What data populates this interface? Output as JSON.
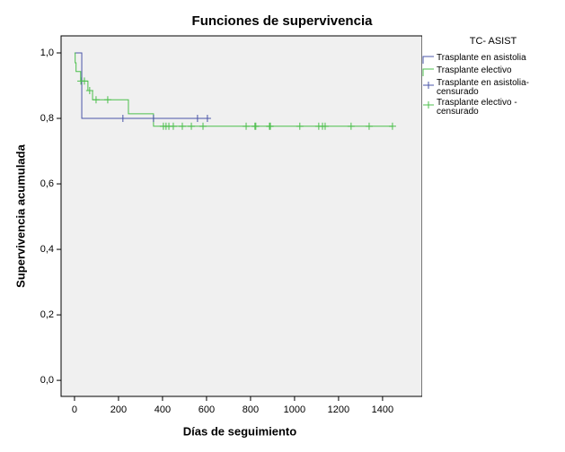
{
  "chart_data": {
    "type": "survival",
    "title": "Funciones de supervivencia",
    "x_label": "Días de seguimiento",
    "y_label": "Supervivencia acumulada",
    "legend_title": "TC- ASIST",
    "xlim": [
      -61,
      1580
    ],
    "ylim": [
      -0.049,
      1.052
    ],
    "xticks": [
      0,
      200,
      400,
      600,
      800,
      1000,
      1200,
      1400
    ],
    "yticks": [
      {
        "value": 0,
        "label": "0,0"
      },
      {
        "value": 0.2,
        "label": "0,2"
      },
      {
        "value": 0.4,
        "label": "0,4"
      },
      {
        "value": 0.6,
        "label": "0,6"
      },
      {
        "value": 0.8,
        "label": "0,8"
      },
      {
        "value": 1,
        "label": "1,0"
      }
    ],
    "series": [
      {
        "name": "Trasplante en asistolia",
        "color": "#4a55a8",
        "kind": "step",
        "x": [
          0,
          33,
          604
        ],
        "values": [
          1.0,
          0.8,
          0.8
        ]
      },
      {
        "name": "Trasplante electivo",
        "color": "#4cbf4c",
        "kind": "step",
        "x": [
          0,
          3,
          7,
          28,
          61,
          82,
          245,
          359,
          1445
        ],
        "values": [
          1.0,
          0.97,
          0.943,
          0.914,
          0.885,
          0.857,
          0.814,
          0.776,
          0.776
        ]
      },
      {
        "name": "Trasplante en asistolia-\ncensurado",
        "color": "#4a55a8",
        "kind": "censored",
        "x": [
          220,
          359,
          559,
          604
        ],
        "values": [
          0.8,
          0.8,
          0.8,
          0.8
        ]
      },
      {
        "name": "Trasplante electivo -\ncensurado",
        "color": "#4cbf4c",
        "kind": "censored",
        "x": [
          29,
          45,
          69,
          98,
          151,
          404,
          416,
          429,
          449,
          490,
          531,
          584,
          780,
          820,
          824,
          886,
          890,
          1024,
          1110,
          1127,
          1139,
          1257,
          1339,
          1445
        ],
        "values": [
          0.914,
          0.914,
          0.885,
          0.857,
          0.857,
          0.776,
          0.776,
          0.776,
          0.776,
          0.776,
          0.776,
          0.776,
          0.776,
          0.776,
          0.776,
          0.776,
          0.776,
          0.776,
          0.776,
          0.776,
          0.776,
          0.776,
          0.776,
          0.776
        ]
      }
    ]
  }
}
